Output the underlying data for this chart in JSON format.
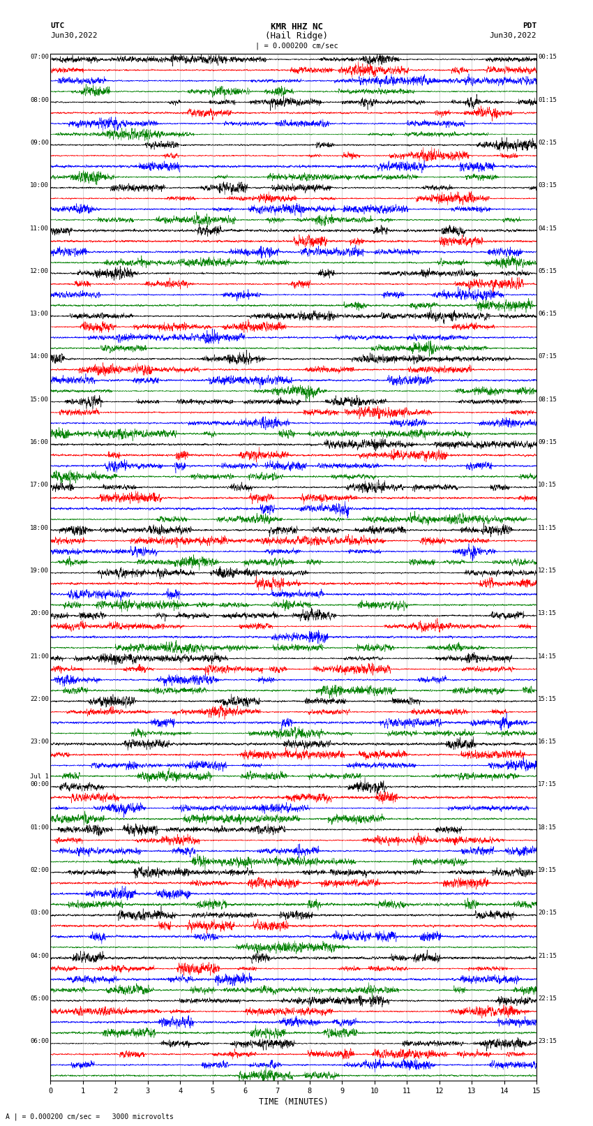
{
  "title_line1": "KMR HHZ NC",
  "title_line2": "(Hail Ridge)",
  "scale_label": "| = 0.000200 cm/sec",
  "utc_label": "UTC",
  "date_left": "Jun30,2022",
  "date_right": "Jun30,2022",
  "pdt_label": "PDT",
  "bottom_note": "A | = 0.000200 cm/sec =   3000 microvolts",
  "xlabel": "TIME (MINUTES)",
  "left_times": [
    "07:00",
    "08:00",
    "09:00",
    "10:00",
    "11:00",
    "12:00",
    "13:00",
    "14:00",
    "15:00",
    "16:00",
    "17:00",
    "18:00",
    "19:00",
    "20:00",
    "21:00",
    "22:00",
    "23:00",
    "Jul 1\n00:00",
    "01:00",
    "02:00",
    "03:00",
    "04:00",
    "05:00",
    "06:00"
  ],
  "right_times": [
    "00:15",
    "01:15",
    "02:15",
    "03:15",
    "04:15",
    "05:15",
    "06:15",
    "07:15",
    "08:15",
    "09:15",
    "10:15",
    "11:15",
    "12:15",
    "13:15",
    "14:15",
    "15:15",
    "16:15",
    "17:15",
    "18:15",
    "19:15",
    "20:15",
    "21:15",
    "22:15",
    "23:15"
  ],
  "n_rows": 24,
  "traces_per_row": 4,
  "colors": [
    "black",
    "red",
    "blue",
    "green"
  ],
  "bg_color": "white",
  "plot_bg": "white",
  "grid_color": "#999999",
  "n_minutes": 15,
  "n_points": 4500,
  "figsize": [
    8.5,
    16.13
  ],
  "dpi": 100
}
